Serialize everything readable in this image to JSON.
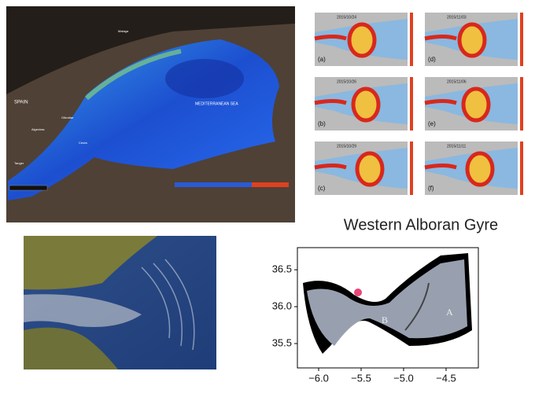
{
  "left_view": {
    "labels": [
      "SPAIN",
      "MEDITERRANEAN SEA",
      "Malaga",
      "Algeciras",
      "Gibraltar",
      "Ceuta",
      "Tanger"
    ]
  },
  "panels": [
    {
      "date": "2015/10/24",
      "letter": "(a)"
    },
    {
      "date": "2015/11/03",
      "letter": "(d)"
    },
    {
      "date": "2015/10/26",
      "letter": "(b)"
    },
    {
      "date": "2015/11/06",
      "letter": "(e)"
    },
    {
      "date": "2015/10/29",
      "letter": "(c)"
    },
    {
      "date": "2015/11/11",
      "letter": "(f)"
    }
  ],
  "title": "Western Alboran Gyre",
  "plot": {
    "xlim": [
      -6.25,
      -4.12
    ],
    "ylim": [
      35.17,
      36.8
    ],
    "xticks": [
      {
        "value": -6,
        "label": "−6.0"
      },
      {
        "value": -5.5,
        "label": "−5.5"
      },
      {
        "value": -5,
        "label": "−5.0"
      },
      {
        "value": -4.5,
        "label": "−4.5"
      }
    ],
    "yticks": [
      {
        "value": 35.5,
        "label": "35.5"
      },
      {
        "value": 36,
        "label": "36.0"
      },
      {
        "value": 36.5,
        "label": "36.5"
      }
    ],
    "annotations": [
      "A",
      "B"
    ]
  }
}
